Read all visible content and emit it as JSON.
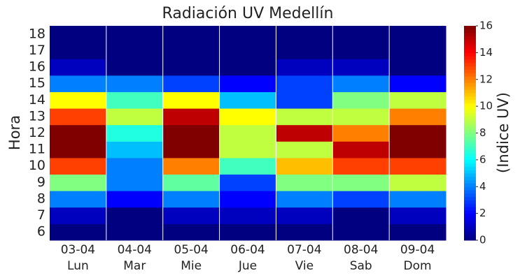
{
  "chart_data": {
    "type": "heatmap",
    "title": "Radiación UV Medellín",
    "categories": [
      "03-04",
      "04-04",
      "05-04",
      "06-04",
      "07-04",
      "08-04",
      "09-04"
    ],
    "weekdays": [
      "Lun",
      "Mar",
      "Mie",
      "Jue",
      "Vie",
      "Sab",
      "Dom"
    ],
    "y_label": "Hora",
    "y": [
      6,
      7,
      8,
      9,
      10,
      11,
      12,
      13,
      14,
      15,
      16,
      17,
      18
    ],
    "z": [
      [
        0,
        0,
        0,
        0,
        0,
        0,
        0
      ],
      [
        1,
        0,
        1,
        1,
        1,
        0,
        1
      ],
      [
        4,
        2,
        4,
        2,
        4,
        3,
        4
      ],
      [
        8,
        4,
        7.5,
        3,
        8,
        8,
        9
      ],
      [
        13,
        4,
        12,
        7,
        11,
        13,
        13
      ],
      [
        16,
        5,
        16,
        9,
        9,
        15,
        16
      ],
      [
        16,
        6.5,
        16,
        9,
        15,
        12,
        16
      ],
      [
        13,
        9,
        15,
        10,
        9,
        9,
        12
      ],
      [
        10,
        7,
        10,
        5,
        3,
        8,
        9
      ],
      [
        4,
        4,
        3,
        2,
        3,
        4,
        2
      ],
      [
        1,
        0,
        0,
        0,
        1,
        1,
        0
      ],
      [
        0,
        0,
        0,
        0,
        0,
        0,
        0
      ],
      [
        0,
        0,
        0,
        0,
        0,
        0,
        0
      ]
    ],
    "colormap": "jet",
    "colorbar": {
      "lim": [
        0,
        16
      ],
      "ticks": [
        0,
        2,
        4,
        6,
        8,
        10,
        12,
        14,
        16
      ],
      "label": "(Indice UV)"
    }
  }
}
